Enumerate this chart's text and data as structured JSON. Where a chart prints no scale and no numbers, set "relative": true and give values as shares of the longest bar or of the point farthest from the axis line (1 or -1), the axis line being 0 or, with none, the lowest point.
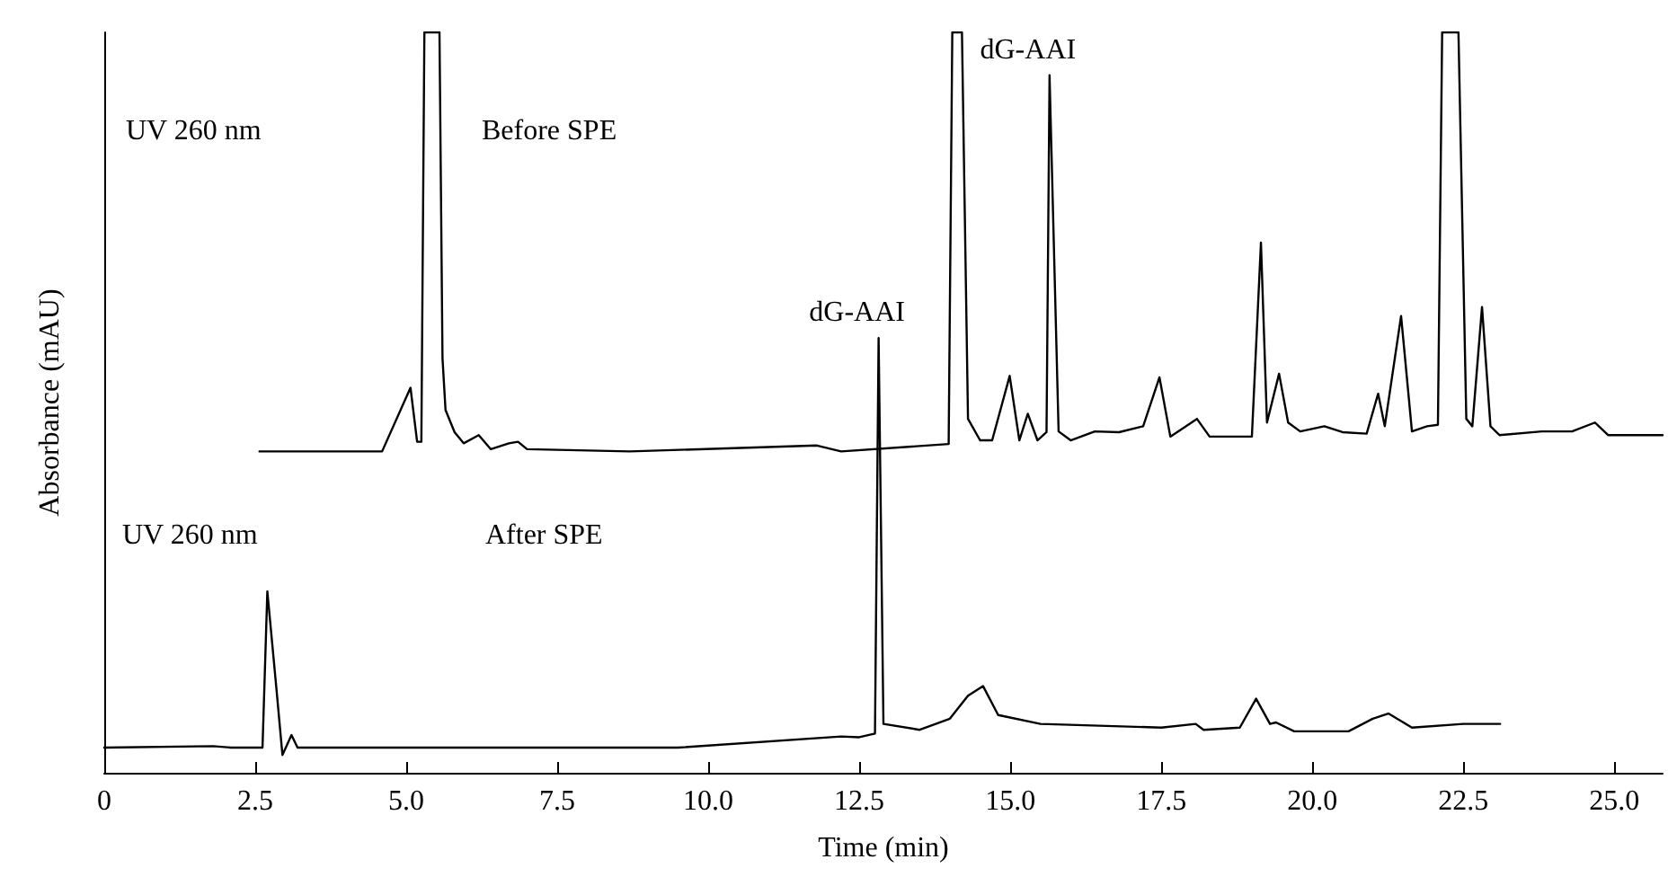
{
  "chart_data": {
    "type": "line",
    "relative": true,
    "xlabel": "Time (min)",
    "ylabel": "Absorbance (mAU)",
    "xlim": [
      0,
      25.8
    ],
    "xticks": [
      0,
      2.5,
      {
        "value": 5,
        "label": "5.0"
      },
      7.5,
      {
        "value": 10,
        "label": "10.0"
      },
      12.5,
      {
        "value": 15,
        "label": "15.0"
      },
      17.5,
      {
        "value": 20,
        "label": "20.0"
      },
      22.5,
      {
        "value": 25,
        "label": "25.0"
      }
    ],
    "grid": false,
    "marker": "none",
    "line_style": "solid",
    "annotations": [
      "UV 260 nm",
      "Before SPE",
      "UV 260 nm",
      "After SPE",
      {
        "text": "dG-AAI",
        "x": 15.65,
        "y": 0.942
      },
      {
        "text": "dG-AAI",
        "x": 12.82,
        "y": 0.587
      }
    ],
    "series": [
      {
        "color": "#000000",
        "x": [
          2.57,
          4.6,
          5.07,
          5.18,
          5.25,
          5.3,
          5.55,
          5.6,
          5.65,
          5.8,
          5.95,
          6.2,
          6.4,
          6.7,
          6.85,
          7.0,
          8.7,
          11.8,
          12.2,
          13.98,
          14.04,
          14.2,
          14.3,
          14.5,
          14.7,
          14.99,
          15.15,
          15.29,
          15.45,
          15.6,
          15.65,
          15.8,
          16.0,
          16.4,
          16.8,
          17.2,
          17.47,
          17.65,
          18.09,
          18.3,
          19.0,
          19.15,
          19.25,
          19.45,
          19.6,
          19.8,
          20.2,
          20.5,
          20.9,
          21.09,
          21.2,
          21.47,
          21.65,
          21.9,
          22.08,
          22.15,
          22.42,
          22.55,
          22.65,
          22.81,
          22.95,
          23.1,
          23.8,
          24.3,
          24.68,
          24.9,
          25.5,
          25.8
        ],
        "values": [
          0.434,
          0.434,
          0.52,
          0.447,
          0.447,
          1,
          1,
          0.56,
          0.49,
          0.46,
          0.445,
          0.456,
          0.437,
          0.445,
          0.447,
          0.437,
          0.434,
          0.442,
          0.434,
          0.444,
          1,
          1,
          0.478,
          0.449,
          0.449,
          0.536,
          0.449,
          0.485,
          0.449,
          0.46,
          0.942,
          0.461,
          0.449,
          0.461,
          0.46,
          0.468,
          0.534,
          0.454,
          0.478,
          0.454,
          0.454,
          0.716,
          0.473,
          0.539,
          0.473,
          0.461,
          0.468,
          0.46,
          0.458,
          0.512,
          0.468,
          0.617,
          0.461,
          0.468,
          0.47,
          1,
          1,
          0.478,
          0.468,
          0.629,
          0.468,
          0.456,
          0.461,
          0.461,
          0.473,
          0.456,
          0.456,
          0.456
        ]
      },
      {
        "color": "#000000",
        "x": [
          0,
          1.8,
          2.1,
          2.62,
          2.7,
          2.85,
          2.95,
          3.1,
          3.2,
          9.5,
          12.2,
          12.5,
          12.76,
          12.82,
          12.9,
          13.5,
          14.0,
          14.3,
          14.55,
          14.8,
          15.5,
          17.5,
          18.07,
          18.2,
          18.8,
          19.07,
          19.3,
          19.4,
          19.7,
          20.6,
          21.0,
          21.26,
          21.65,
          22.5,
          23.11
        ],
        "values": [
          0.034,
          0.036,
          0.034,
          0.034,
          0.245,
          0.114,
          0.024,
          0.051,
          0.034,
          0.034,
          0.049,
          0.048,
          0.053,
          0.587,
          0.066,
          0.058,
          0.073,
          0.104,
          0.117,
          0.078,
          0.066,
          0.061,
          0.066,
          0.058,
          0.061,
          0.1,
          0.066,
          0.068,
          0.056,
          0.056,
          0.073,
          0.08,
          0.061,
          0.066,
          0.066
        ]
      }
    ]
  }
}
